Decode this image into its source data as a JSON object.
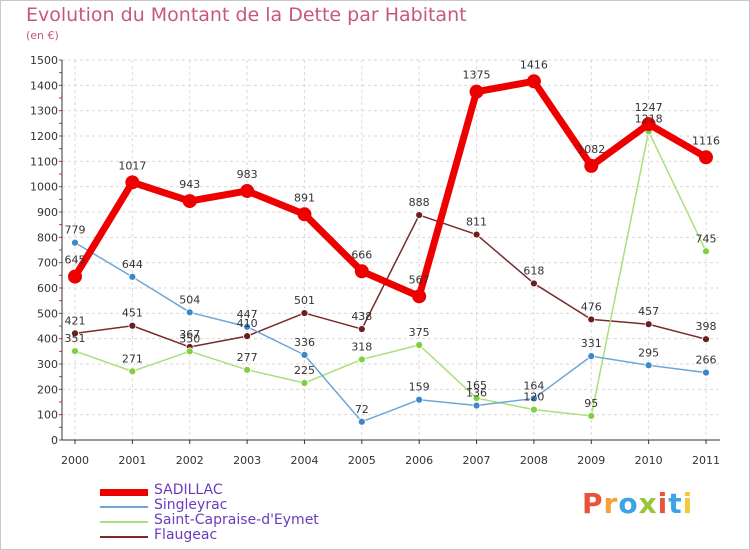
{
  "title": "Evolution du Montant de la Dette par Habitant",
  "subtitle": "(en €)",
  "logo": {
    "text": "Proxiti",
    "colors": [
      "#e7543a",
      "#f2a33a",
      "#3aa4e7",
      "#9bc43a",
      "#e7543a",
      "#3aa4e7",
      "#f2c93a"
    ]
  },
  "chart_data": {
    "type": "line",
    "title": "Evolution du Montant de la Dette par Habitant",
    "subtitle": "(en €)",
    "xlabel": "",
    "ylabel": "",
    "ylim": [
      0,
      1500
    ],
    "yticks": [
      0,
      100,
      200,
      300,
      400,
      500,
      600,
      700,
      800,
      900,
      1000,
      1100,
      1200,
      1300,
      1400,
      1500
    ],
    "grid": true,
    "legend_position": "bottom-left",
    "x": [
      "2000",
      "2001",
      "2002",
      "2003",
      "2004",
      "2005",
      "2006",
      "2007",
      "2008",
      "2009",
      "2010",
      "2011"
    ],
    "series": [
      {
        "name": "SADILLAC",
        "color": "#ee0000",
        "marker": "#ee0000",
        "values": [
          645,
          1017,
          943,
          983,
          891,
          666,
          567,
          1375,
          1416,
          1082,
          1247,
          1116
        ]
      },
      {
        "name": "Singleyrac",
        "color": "#6fa6d8",
        "marker": "#3f86c8",
        "values": [
          779,
          644,
          504,
          447,
          336,
          72,
          159,
          136,
          164,
          331,
          295,
          266
        ]
      },
      {
        "name": "Saint-Capraise-d'Eymet",
        "color": "#a8e07a",
        "marker": "#7ed040",
        "values": [
          351,
          271,
          350,
          277,
          225,
          318,
          375,
          165,
          120,
          95,
          1218,
          745
        ]
      },
      {
        "name": "Flaugeac",
        "color": "#7a2a2a",
        "marker": "#6a1e1e",
        "values": [
          421,
          451,
          367,
          410,
          501,
          438,
          888,
          811,
          618,
          476,
          457,
          398
        ]
      }
    ]
  }
}
